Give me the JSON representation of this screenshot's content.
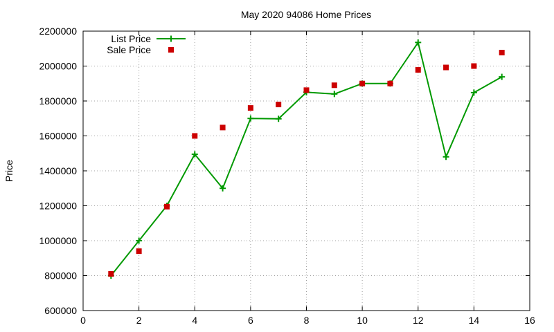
{
  "chart_data": {
    "type": "scatter",
    "title": "May 2020 94086 Home Prices",
    "xlabel": "",
    "ylabel": "Price",
    "xlim": [
      0,
      16
    ],
    "ylim": [
      600000,
      2200000
    ],
    "xticks": [
      0,
      2,
      4,
      6,
      8,
      10,
      12,
      14,
      16
    ],
    "yticks": [
      600000,
      800000,
      1000000,
      1200000,
      1400000,
      1600000,
      1800000,
      2000000,
      2200000
    ],
    "grid": true,
    "legend_position": "top-left",
    "series": [
      {
        "name": "List Price",
        "style": "line-with-plus-markers",
        "color": "#009900",
        "x": [
          1,
          2,
          3,
          4,
          5,
          6,
          7,
          8,
          9,
          10,
          11,
          12,
          13,
          14,
          15
        ],
        "values": [
          800000,
          1000000,
          1200000,
          1495000,
          1300000,
          1700000,
          1698000,
          1850000,
          1840000,
          1900000,
          1900000,
          2135000,
          1480000,
          1848000,
          1938000
        ]
      },
      {
        "name": "Sale Price",
        "style": "square-markers",
        "color": "#cc0000",
        "x": [
          1,
          2,
          3,
          4,
          5,
          6,
          7,
          8,
          9,
          10,
          11,
          12,
          13,
          14,
          15
        ],
        "values": [
          810000,
          940000,
          1195000,
          1600000,
          1648000,
          1760000,
          1780000,
          1862000,
          1890000,
          1900000,
          1900000,
          1978000,
          1992000,
          2000000,
          2077000
        ]
      }
    ]
  }
}
